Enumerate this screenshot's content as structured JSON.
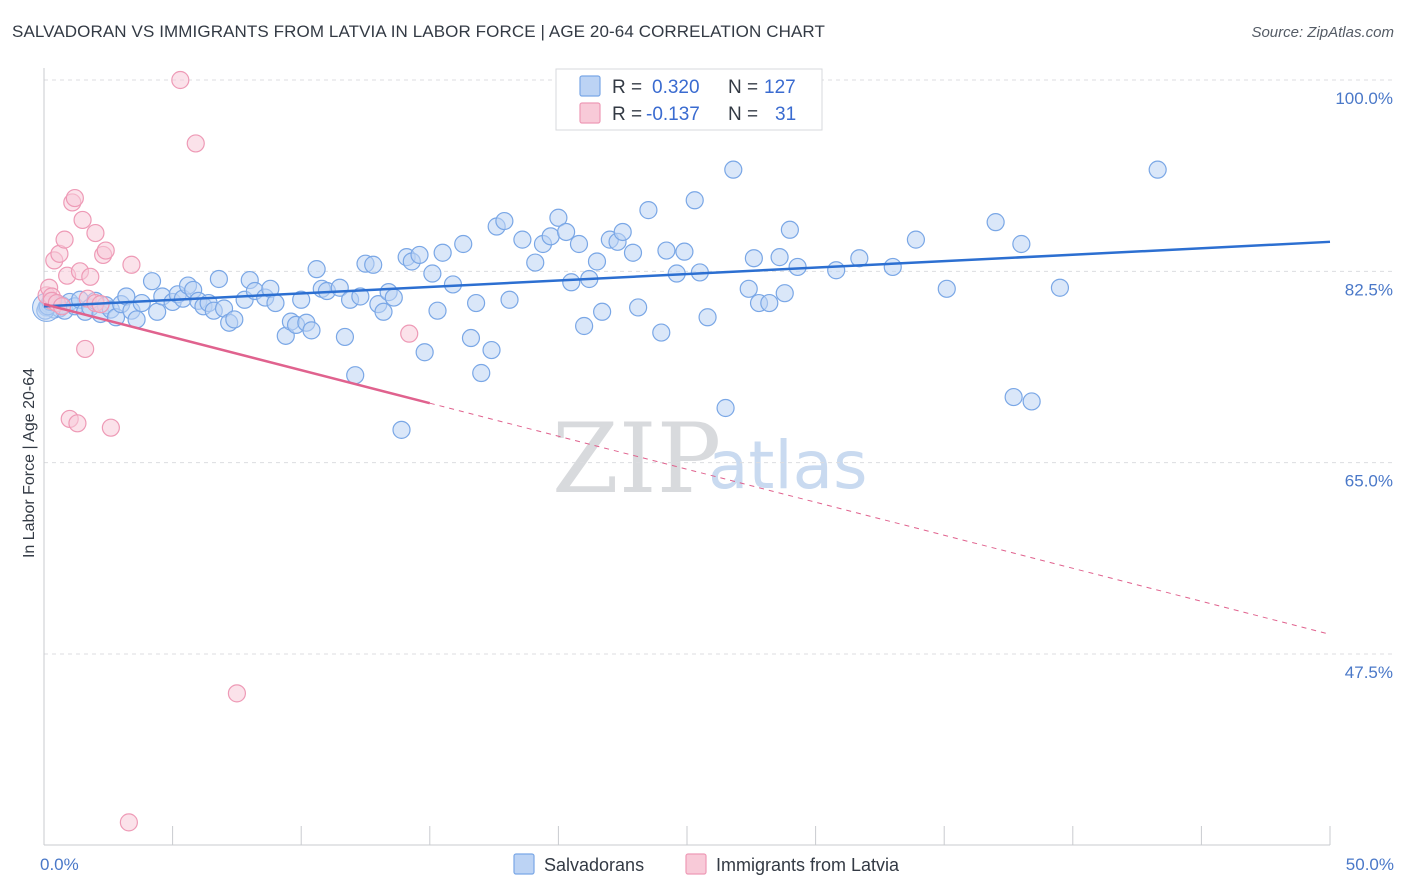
{
  "title": "SALVADORAN VS IMMIGRANTS FROM LATVIA IN LABOR FORCE | AGE 20-64 CORRELATION CHART",
  "source": "Source: ZipAtlas.com",
  "watermark": {
    "zip": "ZIP",
    "atlas": "atlas"
  },
  "chart_data": {
    "type": "scatter",
    "ylabel": "In Labor Force | Age 20-64",
    "xlim": [
      0,
      50
    ],
    "ylim": [
      30,
      103
    ],
    "x_tick_labels": [
      {
        "value": 0,
        "label": "0.0%"
      },
      {
        "value": 50,
        "label": "50.0%"
      }
    ],
    "x_minor_ticks": [
      5,
      10,
      15,
      20,
      25,
      30,
      35,
      40,
      45
    ],
    "y_ticks": [
      {
        "value": 100,
        "label": "100.0%"
      },
      {
        "value": 82.5,
        "label": "82.5%"
      },
      {
        "value": 65,
        "label": "65.0%"
      },
      {
        "value": 47.5,
        "label": "47.5%"
      }
    ],
    "grid": true,
    "legend_position": "top-center",
    "legend": [
      {
        "r_label": "R =",
        "r_value": "0.320",
        "n_label": "N =",
        "n_value": "127",
        "color": "#7aa7e6",
        "fill": "#bcd3f4"
      },
      {
        "r_label": "R =",
        "r_value": "-0.137",
        "n_label": "N =",
        "n_value": "31",
        "color": "#ee9ab6",
        "fill": "#f8cad8"
      }
    ],
    "series": [
      {
        "name": "Salvadorans",
        "color": "#7aa7e6",
        "fill": "#bcd3f4",
        "trend_color": "#2c6fd1",
        "trend": {
          "x0": 0,
          "y0": 79.3,
          "x1": 50,
          "y1": 85.2,
          "dashed_from": null
        },
        "points": [
          [
            0.1,
            79.2
          ],
          [
            0.2,
            79.5
          ],
          [
            0.3,
            79.8
          ],
          [
            0.4,
            79.0
          ],
          [
            0.5,
            79.6
          ],
          [
            0.6,
            79.1
          ],
          [
            0.7,
            79.4
          ],
          [
            0.8,
            78.9
          ],
          [
            1.0,
            79.7
          ],
          [
            1.2,
            79.3
          ],
          [
            1.4,
            79.9
          ],
          [
            1.6,
            78.8
          ],
          [
            1.8,
            79.2
          ],
          [
            2.0,
            79.8
          ],
          [
            2.2,
            78.6
          ],
          [
            2.4,
            79.4
          ],
          [
            2.6,
            79.0
          ],
          [
            2.8,
            78.3
          ],
          [
            3.0,
            79.5
          ],
          [
            3.2,
            80.2
          ],
          [
            3.4,
            78.9
          ],
          [
            3.6,
            78.1
          ],
          [
            3.8,
            79.6
          ],
          [
            4.2,
            81.6
          ],
          [
            4.4,
            78.8
          ],
          [
            4.6,
            80.2
          ],
          [
            5.0,
            79.7
          ],
          [
            5.2,
            80.4
          ],
          [
            5.4,
            80.0
          ],
          [
            5.6,
            81.2
          ],
          [
            5.8,
            80.8
          ],
          [
            6.0,
            79.8
          ],
          [
            6.2,
            79.3
          ],
          [
            6.4,
            79.6
          ],
          [
            6.6,
            78.9
          ],
          [
            6.8,
            81.8
          ],
          [
            7.0,
            79.1
          ],
          [
            7.2,
            77.8
          ],
          [
            7.4,
            78.1
          ],
          [
            7.8,
            79.9
          ],
          [
            8.0,
            81.7
          ],
          [
            8.2,
            80.7
          ],
          [
            8.6,
            80.1
          ],
          [
            8.8,
            80.9
          ],
          [
            9.0,
            79.6
          ],
          [
            9.4,
            76.6
          ],
          [
            9.6,
            77.9
          ],
          [
            9.8,
            77.6
          ],
          [
            10.0,
            79.9
          ],
          [
            10.2,
            77.8
          ],
          [
            10.4,
            77.1
          ],
          [
            10.6,
            82.7
          ],
          [
            10.8,
            80.9
          ],
          [
            11.0,
            80.7
          ],
          [
            11.5,
            81.0
          ],
          [
            11.7,
            76.5
          ],
          [
            11.9,
            79.9
          ],
          [
            12.1,
            73.0
          ],
          [
            12.3,
            80.2
          ],
          [
            12.5,
            83.2
          ],
          [
            12.8,
            83.1
          ],
          [
            13.0,
            79.5
          ],
          [
            13.2,
            78.8
          ],
          [
            13.4,
            80.6
          ],
          [
            13.6,
            80.1
          ],
          [
            13.9,
            68.0
          ],
          [
            14.1,
            83.8
          ],
          [
            14.3,
            83.4
          ],
          [
            14.6,
            84.0
          ],
          [
            14.8,
            75.1
          ],
          [
            15.1,
            82.3
          ],
          [
            15.3,
            78.9
          ],
          [
            15.5,
            84.2
          ],
          [
            15.9,
            81.3
          ],
          [
            16.3,
            85.0
          ],
          [
            16.6,
            76.4
          ],
          [
            16.8,
            79.6
          ],
          [
            17.0,
            73.2
          ],
          [
            17.4,
            75.3
          ],
          [
            17.6,
            86.6
          ],
          [
            17.9,
            87.1
          ],
          [
            18.1,
            79.9
          ],
          [
            18.6,
            85.4
          ],
          [
            19.1,
            83.3
          ],
          [
            19.4,
            85.0
          ],
          [
            19.7,
            85.7
          ],
          [
            20.0,
            87.4
          ],
          [
            20.3,
            86.1
          ],
          [
            20.5,
            81.5
          ],
          [
            20.8,
            85.0
          ],
          [
            21.0,
            77.5
          ],
          [
            21.2,
            81.8
          ],
          [
            21.5,
            83.4
          ],
          [
            21.7,
            78.8
          ],
          [
            22.0,
            85.4
          ],
          [
            22.3,
            85.2
          ],
          [
            22.5,
            86.1
          ],
          [
            22.9,
            84.2
          ],
          [
            23.1,
            79.2
          ],
          [
            23.5,
            88.1
          ],
          [
            24.0,
            76.9
          ],
          [
            24.2,
            84.4
          ],
          [
            24.6,
            82.3
          ],
          [
            24.9,
            84.3
          ],
          [
            25.3,
            89.0
          ],
          [
            25.5,
            82.4
          ],
          [
            25.8,
            78.3
          ],
          [
            26.5,
            70.0
          ],
          [
            26.8,
            91.8
          ],
          [
            27.4,
            80.9
          ],
          [
            27.6,
            83.7
          ],
          [
            27.8,
            79.6
          ],
          [
            28.2,
            79.6
          ],
          [
            28.6,
            83.8
          ],
          [
            28.8,
            80.5
          ],
          [
            29.0,
            86.3
          ],
          [
            29.3,
            82.9
          ],
          [
            30.8,
            82.6
          ],
          [
            31.7,
            83.7
          ],
          [
            33.0,
            82.9
          ],
          [
            33.9,
            85.4
          ],
          [
            35.1,
            80.9
          ],
          [
            37.0,
            87.0
          ],
          [
            37.7,
            71.0
          ],
          [
            38.0,
            85.0
          ],
          [
            38.4,
            70.6
          ],
          [
            39.5,
            81.0
          ],
          [
            43.3,
            91.8
          ],
          [
            0.05,
            78.9
          ],
          [
            0.15,
            79.3
          ],
          [
            0.25,
            79.7
          ]
        ]
      },
      {
        "name": "Immigrants from Latvia",
        "color": "#ee9ab6",
        "fill": "#f8cad8",
        "trend_color": "#e0628e",
        "trend": {
          "x0": 0,
          "y0": 79.5,
          "x1": 50,
          "y1": 49.3,
          "dashed_from": 15
        },
        "points": [
          [
            0.1,
            80.3
          ],
          [
            0.2,
            81.0
          ],
          [
            0.3,
            80.2
          ],
          [
            0.3,
            79.8
          ],
          [
            0.4,
            83.5
          ],
          [
            0.5,
            79.6
          ],
          [
            0.6,
            84.1
          ],
          [
            0.7,
            79.3
          ],
          [
            0.8,
            85.4
          ],
          [
            0.9,
            82.1
          ],
          [
            1.0,
            69.0
          ],
          [
            1.1,
            88.8
          ],
          [
            1.2,
            89.2
          ],
          [
            1.3,
            68.6
          ],
          [
            1.4,
            82.5
          ],
          [
            1.5,
            87.2
          ],
          [
            1.6,
            75.4
          ],
          [
            1.7,
            80.0
          ],
          [
            1.8,
            82.0
          ],
          [
            2.0,
            79.6
          ],
          [
            2.0,
            86.0
          ],
          [
            2.2,
            79.5
          ],
          [
            2.3,
            84.0
          ],
          [
            2.4,
            84.4
          ],
          [
            2.6,
            68.2
          ],
          [
            3.4,
            83.1
          ],
          [
            3.3,
            32.1
          ],
          [
            5.3,
            100.0
          ],
          [
            5.9,
            94.2
          ],
          [
            7.5,
            43.9
          ],
          [
            14.2,
            76.8
          ]
        ]
      }
    ],
    "bottom_legend": [
      "Salvadorans",
      "Immigrants from Latvia"
    ]
  }
}
